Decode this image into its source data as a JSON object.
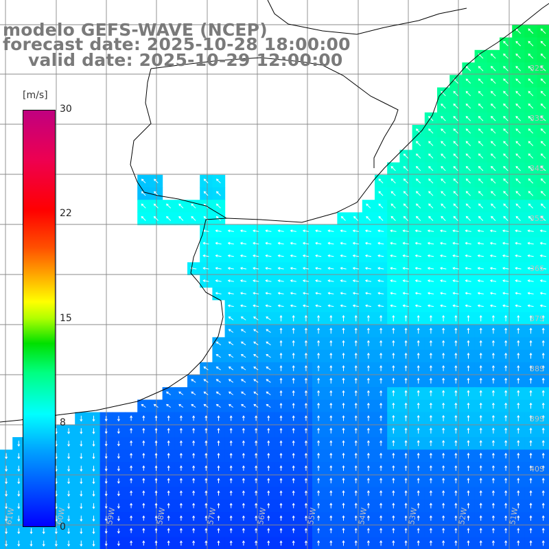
{
  "title": {
    "line1": "modelo GEFS-WAVE (NCEP)",
    "line2": "forecast date: 2025-10-28 18:00:00",
    "line3": "valid date: 2025-10-29 12:00:00"
  },
  "colorbar": {
    "unit": "[m/s]",
    "ticks": [
      "30",
      "22",
      "15",
      "8",
      "0"
    ],
    "range": [
      0,
      30
    ],
    "colors": [
      "#0000ff",
      "#00a0ff",
      "#00ffff",
      "#00ff80",
      "#00e000",
      "#ffff00",
      "#ff5000",
      "#ff0000",
      "#c00080"
    ]
  },
  "axes": {
    "lon_labels": [
      "61W",
      "60W",
      "59W",
      "58W",
      "57W",
      "56W",
      "55W",
      "54W",
      "53W",
      "52W",
      "51W"
    ],
    "lat_labels": [
      "32S",
      "33S",
      "34S",
      "35S",
      "36S",
      "37S",
      "38S",
      "39S",
      "40S"
    ]
  },
  "legend_placement": "left",
  "grid": true
}
